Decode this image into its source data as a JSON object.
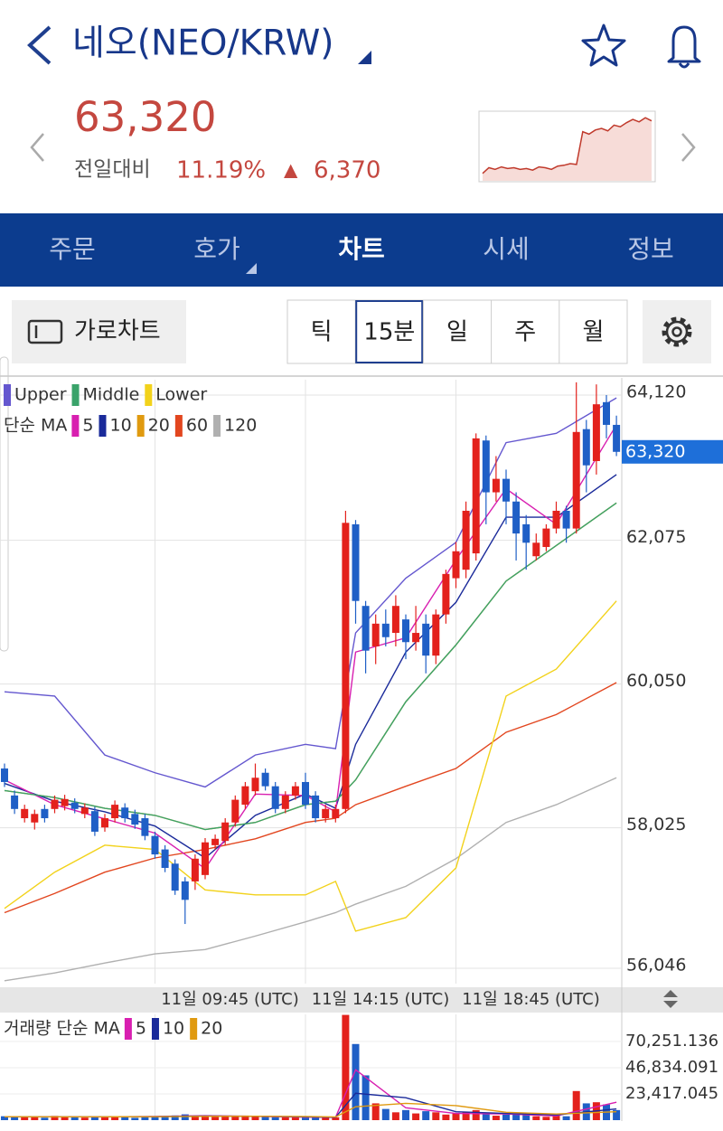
{
  "header": {
    "title": "네오(NEO/KRW)",
    "price": "63,320",
    "change_label": "전일대비",
    "change_pct": "11.19%",
    "change_arrow": "▲",
    "change_abs": "6,370"
  },
  "sparkline": {
    "values": [
      56900,
      57600,
      57400,
      57700,
      57500,
      57600,
      57400,
      57500,
      57300,
      57700,
      57600,
      57400,
      57800,
      57900,
      58100,
      58000,
      62000,
      61700,
      62200,
      62400,
      62100,
      62800,
      62600,
      63100,
      63500,
      63200,
      63700,
      63320
    ],
    "baseline": 56950,
    "ylim": [
      56000,
      64500
    ],
    "color": "#c0392b"
  },
  "tabs": {
    "items": [
      "주문",
      "호가",
      "차트",
      "시세",
      "정보"
    ],
    "active": 2
  },
  "toolbar": {
    "landscape": "가로차트",
    "periods": [
      "틱",
      "15분",
      "일",
      "주",
      "월"
    ],
    "active": 1
  },
  "chart_data": {
    "type": "candlestick",
    "up_color": "#e3211c",
    "down_color": "#1f5fc6",
    "ohlc": [
      [
        58860,
        58930,
        58600,
        58670
      ],
      [
        58480,
        58550,
        58220,
        58290
      ],
      [
        58160,
        58350,
        58100,
        58290
      ],
      [
        58100,
        58280,
        58000,
        58220
      ],
      [
        58290,
        58350,
        58100,
        58160
      ],
      [
        58290,
        58480,
        58230,
        58420
      ],
      [
        58330,
        58490,
        58270,
        58430
      ],
      [
        58380,
        58440,
        58230,
        58290
      ],
      [
        58220,
        58370,
        58160,
        58310
      ],
      [
        58260,
        58320,
        57910,
        57970
      ],
      [
        58030,
        58220,
        57970,
        58160
      ],
      [
        58160,
        58410,
        58100,
        58350
      ],
      [
        58310,
        58370,
        58100,
        58160
      ],
      [
        58220,
        58280,
        58010,
        58070
      ],
      [
        58160,
        58220,
        57850,
        57910
      ],
      [
        57910,
        57970,
        57590,
        57650
      ],
      [
        57720,
        57780,
        57400,
        57460
      ],
      [
        57520,
        57580,
        57080,
        57140
      ],
      [
        57270,
        57330,
        56670,
        57010
      ],
      [
        57270,
        57650,
        57150,
        57590
      ],
      [
        57360,
        57880,
        57300,
        57820
      ],
      [
        57780,
        57930,
        57720,
        57870
      ],
      [
        57840,
        58160,
        57780,
        58100
      ],
      [
        58100,
        58480,
        58040,
        58420
      ],
      [
        58350,
        58670,
        58290,
        58610
      ],
      [
        58540,
        58930,
        58480,
        58730
      ],
      [
        58800,
        58860,
        58550,
        58610
      ],
      [
        58610,
        58670,
        58230,
        58290
      ],
      [
        58290,
        58540,
        58230,
        58480
      ],
      [
        58480,
        58670,
        58420,
        58610
      ],
      [
        58670,
        58800,
        58290,
        58350
      ],
      [
        58480,
        58540,
        58100,
        58160
      ],
      [
        58160,
        58350,
        58100,
        58290
      ],
      [
        58160,
        58350,
        58100,
        58290
      ],
      [
        58290,
        62490,
        58230,
        62320
      ],
      [
        62300,
        62360,
        60900,
        61220
      ],
      [
        61150,
        61220,
        60200,
        60520
      ],
      [
        60580,
        61030,
        60330,
        60900
      ],
      [
        60900,
        61100,
        60580,
        60710
      ],
      [
        60770,
        61300,
        60580,
        61150
      ],
      [
        60960,
        61030,
        60400,
        60640
      ],
      [
        60640,
        61150,
        60520,
        60770
      ],
      [
        60900,
        61030,
        60200,
        60450
      ],
      [
        60450,
        61100,
        60330,
        61030
      ],
      [
        61030,
        61660,
        60900,
        61600
      ],
      [
        61540,
        62050,
        61400,
        61920
      ],
      [
        61660,
        62620,
        61540,
        62490
      ],
      [
        61890,
        63580,
        61790,
        63510
      ],
      [
        63480,
        63550,
        62300,
        62750
      ],
      [
        62750,
        63260,
        62620,
        62940
      ],
      [
        62940,
        63070,
        62300,
        62620
      ],
      [
        62620,
        62750,
        61790,
        62170
      ],
      [
        62300,
        62430,
        61660,
        62040
      ],
      [
        61850,
        62170,
        61790,
        62040
      ],
      [
        61980,
        62300,
        61920,
        62240
      ],
      [
        62240,
        62620,
        62170,
        62490
      ],
      [
        62490,
        62560,
        62040,
        62240
      ],
      [
        62240,
        64300,
        62170,
        63600
      ],
      [
        63640,
        63770,
        62750,
        63130
      ],
      [
        63190,
        64270,
        63000,
        63990
      ],
      [
        64020,
        64120,
        63510,
        63700
      ],
      [
        63700,
        63830,
        63260,
        63320
      ]
    ],
    "ylim": [
      55830,
      64336
    ],
    "yticks": [
      {
        "value": 64120,
        "label": "64,120"
      },
      {
        "value": 62075,
        "label": "62,075"
      },
      {
        "value": 60050,
        "label": "60,050"
      },
      {
        "value": 58025,
        "label": "58,025"
      },
      {
        "value": 56046,
        "label": "56,046"
      }
    ],
    "current": {
      "value": 63320,
      "label": "63,320"
    },
    "x_labels": [
      {
        "value": 15,
        "label": "11일 09:45 (UTC)"
      },
      {
        "value": 30,
        "label": "11일 14:15 (UTC)"
      },
      {
        "value": 45,
        "label": "11일 18:45 (UTC)"
      }
    ],
    "line_x": [
      0,
      5,
      10,
      15,
      20,
      25,
      30,
      33,
      35,
      40,
      45,
      50,
      55,
      61
    ],
    "bands": {
      "series": [
        {
          "name": "Upper",
          "color": "#6457cf",
          "values": [
            59940,
            59880,
            59050,
            58800,
            58600,
            59050,
            59200,
            59140,
            60770,
            61540,
            62045,
            63450,
            63580,
            64080
          ]
        },
        {
          "name": "Middle",
          "color": "#3aa36a",
          "values": [
            58550,
            58450,
            58300,
            58200,
            58000,
            58100,
            58350,
            58400,
            58700,
            59800,
            60600,
            61500,
            62000,
            62600
          ]
        },
        {
          "name": "Lower",
          "color": "#f2d21b",
          "values": [
            56890,
            57400,
            57780,
            57720,
            57150,
            57080,
            57080,
            57270,
            56570,
            56760,
            57460,
            59880,
            60260,
            61220
          ]
        }
      ]
    },
    "ma": {
      "label": "단순 MA",
      "series": [
        {
          "name": "5",
          "color": "#d81fb0",
          "values": [
            58700,
            58350,
            58150,
            57950,
            57450,
            58500,
            58480,
            58250,
            60500,
            60700,
            61800,
            62800,
            62300,
            63700
          ]
        },
        {
          "name": "10",
          "color": "#1a2a9a",
          "values": [
            58650,
            58400,
            58250,
            58050,
            57600,
            58200,
            58500,
            58300,
            59200,
            60500,
            61200,
            62400,
            62400,
            63000
          ]
        },
        {
          "name": "20",
          "color": "#e09a10",
          "values": [
            58550,
            58450,
            58300,
            58200,
            58000,
            58100,
            58350,
            58400,
            58700,
            59800,
            60600,
            61500,
            62000,
            62600
          ]
        },
        {
          "name": "60",
          "color": "#e2461f",
          "values": [
            56830,
            57100,
            57400,
            57600,
            57720,
            57870,
            58100,
            58160,
            58350,
            58610,
            58860,
            59370,
            59620,
            60070
          ]
        },
        {
          "name": "120",
          "color": "#b0b0b0",
          "values": [
            55870,
            55980,
            56120,
            56250,
            56310,
            56500,
            56700,
            56830,
            56950,
            57200,
            57590,
            58100,
            58350,
            58730
          ]
        }
      ]
    },
    "volume": {
      "label": "거래량 단순 MA",
      "values": [
        3500,
        2800,
        3000,
        2500,
        2200,
        3800,
        2600,
        2400,
        2300,
        3000,
        2700,
        3300,
        2500,
        2100,
        2900,
        3100,
        3600,
        4200,
        5200,
        4000,
        3500,
        2800,
        3200,
        3000,
        4100,
        3900,
        3300,
        2700,
        2500,
        3100,
        2600,
        2400,
        2200,
        2600,
        94000,
        68000,
        40000,
        15000,
        10000,
        7000,
        9000,
        6000,
        8000,
        7000,
        5000,
        6000,
        7000,
        9000,
        6000,
        4000,
        5000,
        6000,
        4500,
        3500,
        3000,
        4000,
        3500,
        26000,
        15000,
        16000,
        14000,
        9000
      ],
      "ylim": [
        0,
        94475
      ],
      "yticks": [
        {
          "value": 70251.136,
          "label": "70,251.136"
        },
        {
          "value": 46834.091,
          "label": "46,834.091"
        },
        {
          "value": 23417.045,
          "label": "23,417.045"
        }
      ],
      "series": [
        {
          "name": "5",
          "color": "#d81fb0",
          "values": [
            3000,
            3100,
            2900,
            3300,
            4000,
            3400,
            2700,
            2500,
            45000,
            11000,
            6000,
            5500,
            3800,
            16000
          ]
        },
        {
          "name": "10",
          "color": "#1a2a9a",
          "values": [
            3000,
            3000,
            3000,
            3200,
            3700,
            3500,
            3000,
            2600,
            24000,
            20000,
            7500,
            6000,
            4700,
            10000
          ]
        },
        {
          "name": "20",
          "color": "#e09a10",
          "values": [
            3100,
            3000,
            3000,
            3100,
            3400,
            3500,
            3300,
            2900,
            12000,
            15000,
            13000,
            7000,
            5500,
            7500
          ]
        }
      ]
    }
  }
}
